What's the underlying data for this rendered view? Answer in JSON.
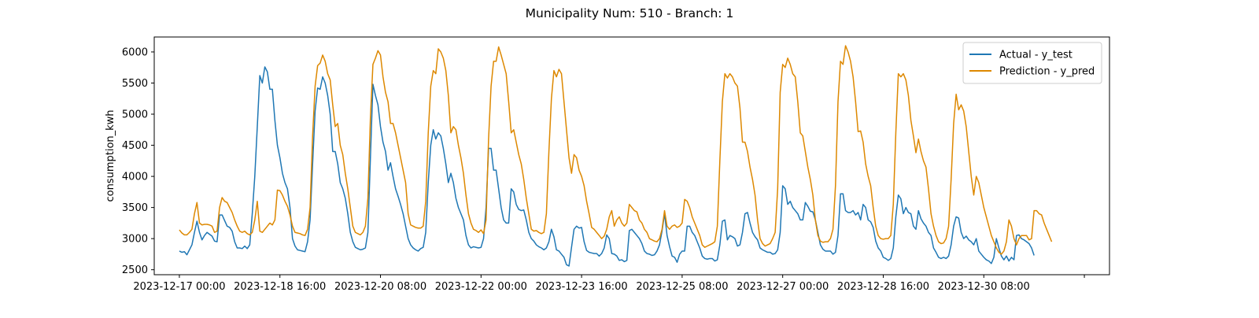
{
  "chart_data": {
    "type": "line",
    "title": "Municipality Num: 510 - Branch: 1",
    "xlabel": "",
    "ylabel": "consumption_kwh",
    "x_start": "2023-12-17 00:00",
    "x_end": "2023-12-31 23:00",
    "x_step_hours": 1,
    "xlim": [
      "2023-12-16 14:00",
      "2024-01-01 10:00"
    ],
    "ylim": [
      2420,
      6240
    ],
    "x_ticks": [
      {
        "date": "2023-12-17 00:00",
        "label": "2023-12-17 00:00"
      },
      {
        "date": "2023-12-18 16:00",
        "label": "2023-12-18 16:00"
      },
      {
        "date": "2023-12-20 08:00",
        "label": "2023-12-20 08:00"
      },
      {
        "date": "2023-12-22 00:00",
        "label": "2023-12-22 00:00"
      },
      {
        "date": "2023-12-23 16:00",
        "label": "2023-12-23 16:00"
      },
      {
        "date": "2023-12-25 08:00",
        "label": "2023-12-25 08:00"
      },
      {
        "date": "2023-12-27 00:00",
        "label": "2023-12-27 00:00"
      },
      {
        "date": "2023-12-28 16:00",
        "label": "2023-12-28 16:00"
      },
      {
        "date": "2023-12-30 08:00",
        "label": "2023-12-30 08:00"
      },
      {
        "date": "2024-01-01 00:00",
        "label": ""
      }
    ],
    "y_ticks": [
      2500,
      3000,
      3500,
      4000,
      4500,
      5000,
      5500,
      6000
    ],
    "legend_placement": "top-right",
    "grid": false,
    "series": [
      {
        "name": "Actual - y_test",
        "color": "#1f77b4",
        "values": [
          2800,
          2780,
          2790,
          2740,
          2820,
          2900,
          3100,
          3280,
          3100,
          2980,
          3050,
          3100,
          3070,
          3040,
          2960,
          2950,
          3380,
          3380,
          3290,
          3200,
          3180,
          3120,
          2950,
          2850,
          2850,
          2840,
          2880,
          2840,
          2900,
          3400,
          4000,
          4800,
          5620,
          5500,
          5760,
          5680,
          5400,
          5400,
          4900,
          4500,
          4300,
          4050,
          3900,
          3800,
          3500,
          3000,
          2880,
          2820,
          2810,
          2800,
          2790,
          2950,
          3300,
          4200,
          5050,
          5420,
          5400,
          5600,
          5500,
          5300,
          5000,
          4400,
          4400,
          4200,
          3900,
          3800,
          3650,
          3400,
          3100,
          2950,
          2860,
          2840,
          2820,
          2830,
          2850,
          3100,
          4300,
          5480,
          5300,
          5150,
          4800,
          4550,
          4400,
          4100,
          4220,
          4000,
          3800,
          3680,
          3550,
          3400,
          3200,
          3000,
          2900,
          2850,
          2820,
          2800,
          2840,
          2860,
          3100,
          3900,
          4500,
          4750,
          4600,
          4700,
          4650,
          4450,
          4200,
          3900,
          4050,
          3900,
          3650,
          3500,
          3400,
          3300,
          3050,
          2900,
          2850,
          2870,
          2860,
          2850,
          2860,
          3000,
          3500,
          4450,
          4450,
          4100,
          4100,
          3800,
          3500,
          3300,
          3250,
          3250,
          3800,
          3750,
          3550,
          3470,
          3450,
          3460,
          3300,
          3100,
          3000,
          2960,
          2900,
          2870,
          2850,
          2820,
          2850,
          2950,
          3150,
          3030,
          2820,
          2800,
          2750,
          2700,
          2580,
          2560,
          2860,
          3150,
          3200,
          3170,
          3180,
          2950,
          2810,
          2780,
          2770,
          2760,
          2760,
          2720,
          2760,
          2850,
          3060,
          3000,
          2760,
          2750,
          2720,
          2650,
          2660,
          2630,
          2650,
          3130,
          3150,
          3100,
          3050,
          3000,
          2920,
          2800,
          2760,
          2750,
          2730,
          2740,
          2800,
          2900,
          3120,
          3400,
          3050,
          2870,
          2720,
          2700,
          2620,
          2750,
          2800,
          2800,
          3200,
          3200,
          3100,
          3050,
          2950,
          2850,
          2720,
          2680,
          2670,
          2680,
          2680,
          2640,
          2660,
          2900,
          3280,
          3300,
          2980,
          3050,
          3030,
          3000,
          2880,
          2900,
          3100,
          3400,
          3420,
          3250,
          3100,
          3030,
          2980,
          2850,
          2820,
          2800,
          2780,
          2780,
          2750,
          2760,
          2820,
          3100,
          3850,
          3800,
          3550,
          3600,
          3500,
          3450,
          3400,
          3300,
          3300,
          3580,
          3520,
          3440,
          3430,
          3300,
          3100,
          2900,
          2830,
          2800,
          2800,
          2800,
          2750,
          2780,
          3050,
          3720,
          3720,
          3450,
          3420,
          3420,
          3450,
          3380,
          3420,
          3300,
          3550,
          3500,
          3300,
          3270,
          3180,
          2960,
          2850,
          2800,
          2700,
          2680,
          2650,
          2680,
          2850,
          3350,
          3700,
          3640,
          3400,
          3500,
          3420,
          3400,
          3200,
          3150,
          3450,
          3320,
          3250,
          3200,
          3100,
          3050,
          2850,
          2780,
          2700,
          2680,
          2700,
          2680,
          2720,
          2900,
          3200,
          3350,
          3330,
          3100,
          3000,
          3040,
          2980,
          2950,
          2900,
          3000,
          2800,
          2750,
          2700,
          2660,
          2640,
          2600,
          2700,
          3000,
          2850,
          2720,
          2660,
          2720,
          2640,
          2700,
          2660,
          3050,
          3060,
          3000,
          2980,
          2950,
          2920,
          2850,
          2730
        ]
      },
      {
        "name": "Prediction - y_pred",
        "color": "#dd8800",
        "values": [
          3140,
          3090,
          3060,
          3060,
          3100,
          3150,
          3400,
          3580,
          3250,
          3220,
          3230,
          3230,
          3220,
          3200,
          3100,
          3120,
          3500,
          3660,
          3600,
          3580,
          3500,
          3420,
          3300,
          3200,
          3120,
          3100,
          3120,
          3080,
          3060,
          3100,
          3300,
          3600,
          3120,
          3100,
          3150,
          3200,
          3250,
          3220,
          3300,
          3780,
          3770,
          3700,
          3600,
          3520,
          3380,
          3200,
          3100,
          3090,
          3080,
          3060,
          3050,
          3150,
          3500,
          4650,
          5450,
          5780,
          5820,
          5950,
          5850,
          5650,
          5550,
          5150,
          4800,
          4850,
          4500,
          4350,
          4050,
          3800,
          3500,
          3200,
          3100,
          3080,
          3060,
          3100,
          3200,
          3650,
          4950,
          5800,
          5900,
          6020,
          5950,
          5600,
          5350,
          5200,
          4850,
          4850,
          4700,
          4500,
          4300,
          4100,
          3900,
          3400,
          3220,
          3200,
          3180,
          3170,
          3170,
          3200,
          3600,
          4700,
          5450,
          5700,
          5650,
          6050,
          6000,
          5900,
          5700,
          5300,
          4700,
          4800,
          4750,
          4500,
          4300,
          4050,
          3700,
          3400,
          3250,
          3150,
          3130,
          3100,
          3140,
          3080,
          3300,
          4600,
          5450,
          5850,
          5850,
          6080,
          5950,
          5800,
          5650,
          5200,
          4700,
          4750,
          4550,
          4350,
          4200,
          3950,
          3650,
          3400,
          3150,
          3120,
          3130,
          3100,
          3080,
          3100,
          3400,
          4400,
          5250,
          5700,
          5600,
          5720,
          5650,
          5200,
          4750,
          4300,
          4050,
          4350,
          4300,
          4100,
          4000,
          3850,
          3600,
          3400,
          3180,
          3150,
          3100,
          3050,
          3000,
          3040,
          3150,
          3350,
          3450,
          3200,
          3300,
          3350,
          3250,
          3200,
          3250,
          3550,
          3500,
          3450,
          3430,
          3300,
          3250,
          3150,
          3100,
          3000,
          2980,
          2960,
          2950,
          3000,
          3150,
          3450,
          3200,
          3150,
          3200,
          3220,
          3180,
          3200,
          3250,
          3630,
          3600,
          3500,
          3350,
          3250,
          3150,
          3050,
          2900,
          2860,
          2880,
          2900,
          2920,
          2950,
          3200,
          4250,
          5200,
          5650,
          5580,
          5650,
          5600,
          5500,
          5450,
          5100,
          4550,
          4550,
          4400,
          4150,
          3950,
          3700,
          3300,
          3000,
          2920,
          2880,
          2900,
          2920,
          3000,
          3100,
          3800,
          5350,
          5800,
          5750,
          5900,
          5800,
          5650,
          5600,
          5200,
          4700,
          4650,
          4400,
          4150,
          3950,
          3700,
          3300,
          3050,
          2960,
          2940,
          2950,
          2950,
          3000,
          3150,
          3850,
          5200,
          5850,
          5800,
          6100,
          6000,
          5850,
          5600,
          5200,
          4720,
          4730,
          4550,
          4200,
          4000,
          3850,
          3500,
          3200,
          3050,
          3000,
          2990,
          3000,
          3000,
          3050,
          3550,
          4700,
          5650,
          5600,
          5650,
          5550,
          5300,
          4900,
          4650,
          4380,
          4600,
          4400,
          4250,
          4150,
          3800,
          3400,
          3200,
          3050,
          2950,
          2920,
          2930,
          3000,
          3200,
          3950,
          4850,
          5320,
          5070,
          5150,
          5050,
          4800,
          4400,
          4000,
          3700,
          4000,
          3900,
          3700,
          3500,
          3350,
          3200,
          3050,
          2950,
          2850,
          2780,
          2750,
          2800,
          2950,
          3300,
          3200,
          3000,
          2900,
          3000,
          3050,
          3050,
          3050,
          2980,
          3000,
          3450,
          3450,
          3400,
          3380,
          3250,
          3150,
          3050,
          2950
        ]
      }
    ]
  }
}
